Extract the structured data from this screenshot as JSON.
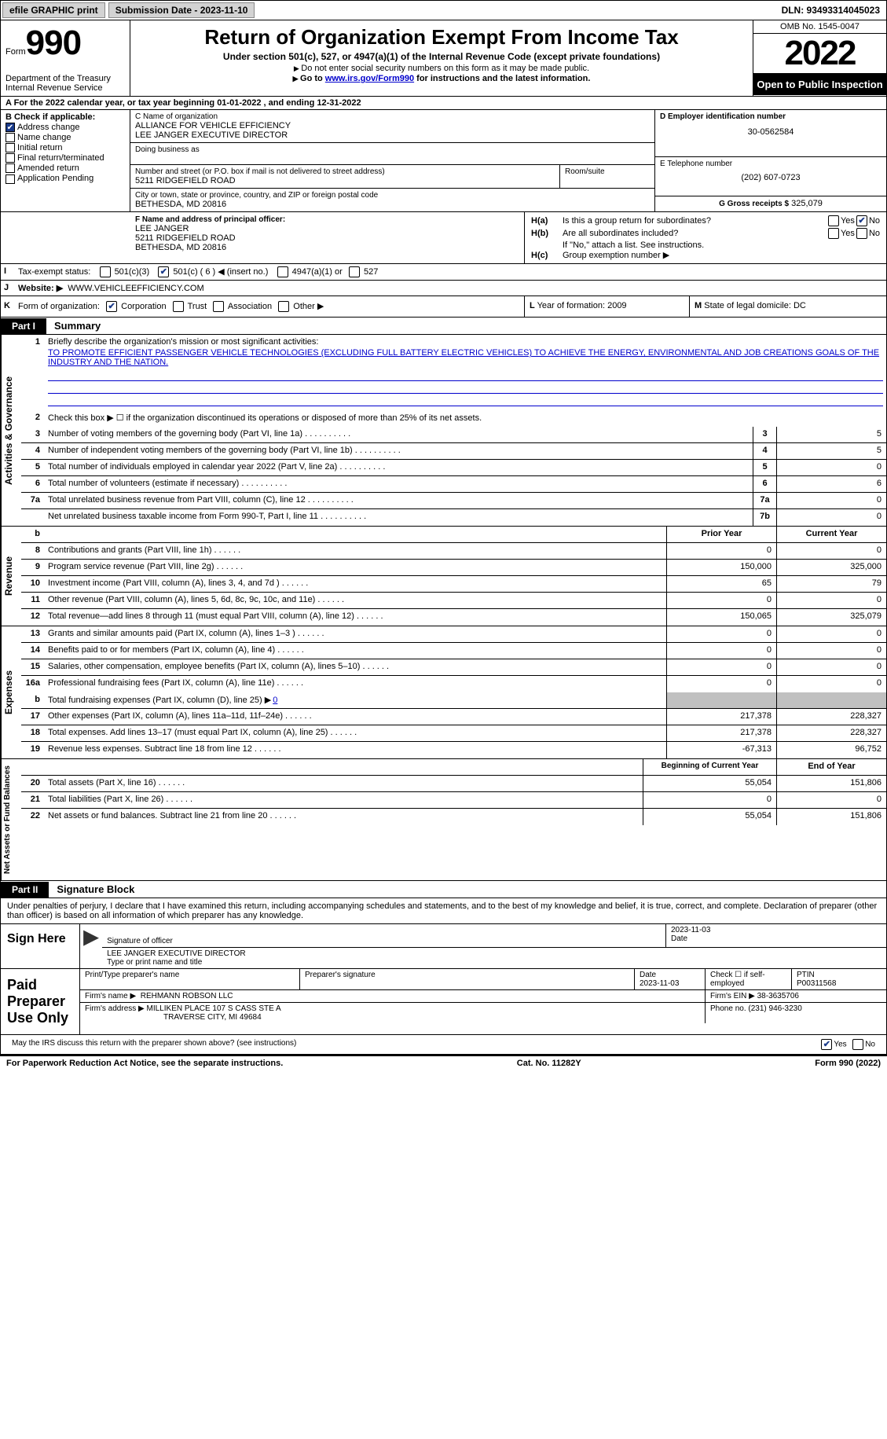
{
  "top": {
    "efile": "efile GRAPHIC print",
    "submission": "Submission Date - 2023-11-10",
    "dln": "DLN: 93493314045023"
  },
  "header": {
    "form_label": "Form",
    "form_num": "990",
    "dept": "Department of the Treasury",
    "irs": "Internal Revenue Service",
    "title": "Return of Organization Exempt From Income Tax",
    "sub": "Under section 501(c), 527, or 4947(a)(1) of the Internal Revenue Code (except private foundations)",
    "note1": "Do not enter social security numbers on this form as it may be made public.",
    "note2_a": "Go to ",
    "note2_link": "www.irs.gov/Form990",
    "note2_b": " for instructions and the latest information.",
    "omb": "OMB No. 1545-0047",
    "year": "2022",
    "open": "Open to Public Inspection"
  },
  "row_a": "A For the 2022 calendar year, or tax year beginning 01-01-2022   , and ending 12-31-2022",
  "col_b": {
    "title": "B Check if applicable:",
    "items": [
      {
        "label": "Address change",
        "checked": true
      },
      {
        "label": "Name change",
        "checked": false
      },
      {
        "label": "Initial return",
        "checked": false
      },
      {
        "label": "Final return/terminated",
        "checked": false
      },
      {
        "label": "Amended return",
        "checked": false
      },
      {
        "label": "Application Pending",
        "checked": false
      }
    ]
  },
  "col_c": {
    "name_label": "C Name of organization",
    "name1": "ALLIANCE FOR VEHICLE EFFICIENCY",
    "name2": "LEE JANGER EXECUTIVE DIRECTOR",
    "dba_label": "Doing business as",
    "street_label": "Number and street (or P.O. box if mail is not delivered to street address)",
    "room_label": "Room/suite",
    "street": "5211 RIDGEFIELD ROAD",
    "city_label": "City or town, state or province, country, and ZIP or foreign postal code",
    "city": "BETHESDA, MD  20816",
    "f_label": "F Name and address of principal officer:",
    "f_name": "LEE JANGER",
    "f_street": "5211 RIDGEFIELD ROAD",
    "f_city": "BETHESDA, MD  20816"
  },
  "col_d": {
    "ein_label": "D Employer identification number",
    "ein": "30-0562584",
    "phone_label": "E Telephone number",
    "phone": "(202) 607-0723",
    "gross_label": "G Gross receipts $",
    "gross": "325,079"
  },
  "col_h": {
    "a": "Is this a group return for subordinates?",
    "b": "Are all subordinates included?",
    "b_note": "If \"No,\" attach a list. See instructions.",
    "c": "Group exemption number ▶",
    "no": "No",
    "yes": "Yes",
    "ha": "H(a)",
    "hb": "H(b)",
    "hc": "H(c)"
  },
  "row_i": {
    "label": "I",
    "text": "Tax-exempt status:",
    "o1": "501(c)(3)",
    "o2": "501(c) ( 6 ) ◀ (insert no.)",
    "o3": "4947(a)(1) or",
    "o4": "527"
  },
  "row_j": {
    "label": "J",
    "text": "Website: ▶",
    "val": "WWW.VEHICLEEFFICIENCY.COM"
  },
  "row_k": {
    "label": "K",
    "text": "Form of organization:",
    "o1": "Corporation",
    "o2": "Trust",
    "o3": "Association",
    "o4": "Other ▶"
  },
  "row_l": {
    "label": "L",
    "text": "Year of formation:",
    "val": "2009"
  },
  "row_m": {
    "label": "M",
    "text": "State of legal domicile:",
    "val": "DC"
  },
  "part1": {
    "tab": "Part I",
    "title": "Summary"
  },
  "section1": {
    "label": "Activities & Governance",
    "r1_num": "1",
    "r1": "Briefly describe the organization's mission or most significant activities:",
    "mission": "TO PROMOTE EFFICIENT PASSENGER VEHICLE TECHNOLOGIES (EXCLUDING FULL BATTERY ELECTRIC VEHICLES) TO ACHIEVE THE ENERGY, ENVIRONMENTAL AND JOB CREATIONS GOALS OF THE INDUSTRY AND THE NATION.",
    "r2_num": "2",
    "r2": "Check this box ▶ ☐ if the organization discontinued its operations or disposed of more than 25% of its net assets.",
    "rows": [
      {
        "n": "3",
        "d": "Number of voting members of the governing body (Part VI, line 1a)",
        "b": "3",
        "v": "5"
      },
      {
        "n": "4",
        "d": "Number of independent voting members of the governing body (Part VI, line 1b)",
        "b": "4",
        "v": "5"
      },
      {
        "n": "5",
        "d": "Total number of individuals employed in calendar year 2022 (Part V, line 2a)",
        "b": "5",
        "v": "0"
      },
      {
        "n": "6",
        "d": "Total number of volunteers (estimate if necessary)",
        "b": "6",
        "v": "6"
      },
      {
        "n": "7a",
        "d": "Total unrelated business revenue from Part VIII, column (C), line 12",
        "b": "7a",
        "v": "0"
      },
      {
        "n": "",
        "d": "Net unrelated business taxable income from Form 990-T, Part I, line 11",
        "b": "7b",
        "v": "0"
      }
    ]
  },
  "revenue": {
    "label": "Revenue",
    "head_b": "b",
    "head_prior": "Prior Year",
    "head_curr": "Current Year",
    "rows": [
      {
        "n": "8",
        "d": "Contributions and grants (Part VIII, line 1h)",
        "p": "0",
        "c": "0"
      },
      {
        "n": "9",
        "d": "Program service revenue (Part VIII, line 2g)",
        "p": "150,000",
        "c": "325,000"
      },
      {
        "n": "10",
        "d": "Investment income (Part VIII, column (A), lines 3, 4, and 7d )",
        "p": "65",
        "c": "79"
      },
      {
        "n": "11",
        "d": "Other revenue (Part VIII, column (A), lines 5, 6d, 8c, 9c, 10c, and 11e)",
        "p": "0",
        "c": "0"
      },
      {
        "n": "12",
        "d": "Total revenue—add lines 8 through 11 (must equal Part VIII, column (A), line 12)",
        "p": "150,065",
        "c": "325,079"
      }
    ]
  },
  "expenses": {
    "label": "Expenses",
    "rows": [
      {
        "n": "13",
        "d": "Grants and similar amounts paid (Part IX, column (A), lines 1–3 )",
        "p": "0",
        "c": "0"
      },
      {
        "n": "14",
        "d": "Benefits paid to or for members (Part IX, column (A), line 4)",
        "p": "0",
        "c": "0"
      },
      {
        "n": "15",
        "d": "Salaries, other compensation, employee benefits (Part IX, column (A), lines 5–10)",
        "p": "0",
        "c": "0"
      },
      {
        "n": "16a",
        "d": "Professional fundraising fees (Part IX, column (A), line 11e)",
        "p": "0",
        "c": "0"
      }
    ],
    "r16b_n": "b",
    "r16b": "Total fundraising expenses (Part IX, column (D), line 25) ▶",
    "r16b_v": "0",
    "rows2": [
      {
        "n": "17",
        "d": "Other expenses (Part IX, column (A), lines 11a–11d, 11f–24e)",
        "p": "217,378",
        "c": "228,327"
      },
      {
        "n": "18",
        "d": "Total expenses. Add lines 13–17 (must equal Part IX, column (A), line 25)",
        "p": "217,378",
        "c": "228,327"
      },
      {
        "n": "19",
        "d": "Revenue less expenses. Subtract line 18 from line 12",
        "p": "-67,313",
        "c": "96,752"
      }
    ]
  },
  "net": {
    "label": "Net Assets or Fund Balances",
    "head_b": "Beginning of Current Year",
    "head_e": "End of Year",
    "rows": [
      {
        "n": "20",
        "d": "Total assets (Part X, line 16)",
        "p": "55,054",
        "c": "151,806"
      },
      {
        "n": "21",
        "d": "Total liabilities (Part X, line 26)",
        "p": "0",
        "c": "0"
      },
      {
        "n": "22",
        "d": "Net assets or fund balances. Subtract line 21 from line 20",
        "p": "55,054",
        "c": "151,806"
      }
    ]
  },
  "part2": {
    "tab": "Part II",
    "title": "Signature Block"
  },
  "sig": {
    "declare": "Under penalties of perjury, I declare that I have examined this return, including accompanying schedules and statements, and to the best of my knowledge and belief, it is true, correct, and complete. Declaration of preparer (other than officer) is based on all information of which preparer has any knowledge.",
    "sign_here": "Sign Here",
    "sig_off": "Signature of officer",
    "date": "Date",
    "date_v": "2023-11-03",
    "name": "LEE JANGER  EXECUTIVE DIRECTOR",
    "name_lbl": "Type or print name and title",
    "paid": "Paid Preparer Use Only",
    "p_name_lbl": "Print/Type preparer's name",
    "p_sig_lbl": "Preparer's signature",
    "p_date_lbl": "Date",
    "p_date": "2023-11-03",
    "p_check": "Check ☐ if self-employed",
    "ptin_lbl": "PTIN",
    "ptin": "P00311568",
    "firm_lbl": "Firm's name    ▶",
    "firm": "REHMANN ROBSON LLC",
    "fein_lbl": "Firm's EIN ▶",
    "fein": "38-3635706",
    "addr_lbl": "Firm's address ▶",
    "addr1": "MILLIKEN PLACE 107 S CASS STE A",
    "addr2": "TRAVERSE CITY, MI  49684",
    "ph_lbl": "Phone no.",
    "ph": "(231) 946-3230",
    "may": "May the IRS discuss this return with the preparer shown above? (see instructions)",
    "yes": "Yes",
    "no": "No"
  },
  "footer": {
    "left": "For Paperwork Reduction Act Notice, see the separate instructions.",
    "mid": "Cat. No. 11282Y",
    "right": "Form 990 (2022)"
  }
}
